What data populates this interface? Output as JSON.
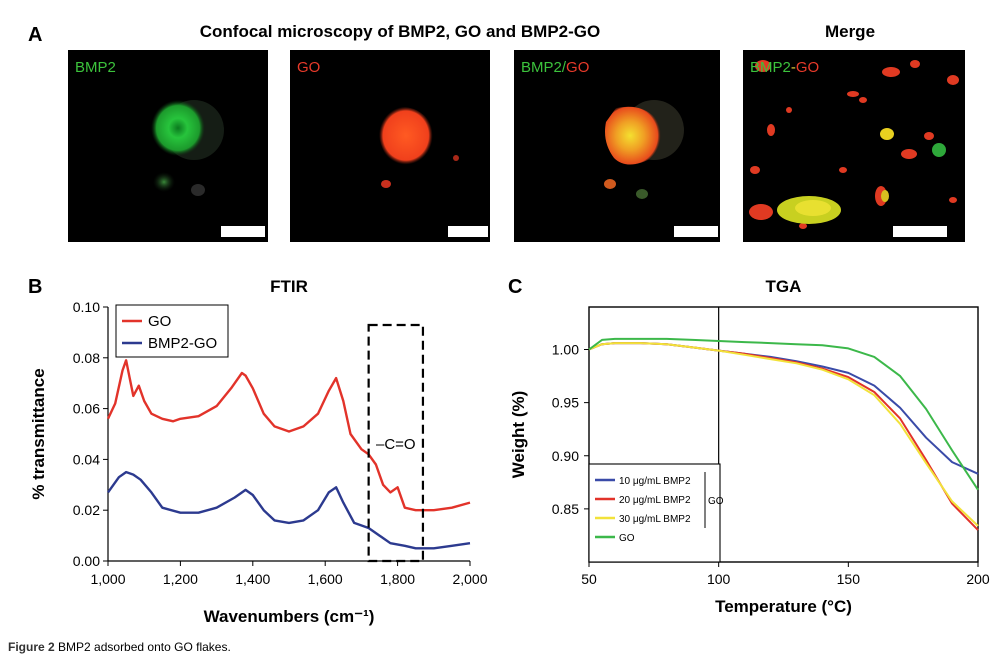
{
  "panel_a": {
    "letter": "A",
    "title": "Confocal microscopy of BMP2, GO and BMP2-GO",
    "merge_title": "Merge",
    "images": [
      {
        "label_parts": [
          {
            "text": "BMP2",
            "color": "#3cc23c"
          }
        ]
      },
      {
        "label_parts": [
          {
            "text": "GO",
            "color": "#e83a2a"
          }
        ]
      },
      {
        "label_parts": [
          {
            "text": "BMP2",
            "color": "#3cc23c"
          },
          {
            "text": "/",
            "color": "#3cc23c"
          },
          {
            "text": "GO",
            "color": "#e83a2a"
          }
        ]
      },
      {
        "label_parts": [
          {
            "text": "BMP2",
            "color": "#3cc23c"
          },
          {
            "text": "-",
            "color": "#e8d23a"
          },
          {
            "text": "GO",
            "color": "#e83a2a"
          }
        ]
      }
    ]
  },
  "panel_b": {
    "letter": "B"
  },
  "panel_c": {
    "letter": "C"
  },
  "caption": {
    "bold": "Figure 2",
    "text": "BMP2 adsorbed onto GO flakes."
  },
  "chart_data": [
    {
      "type": "line",
      "title": "FTIR",
      "xlabel": "Wavenumbers (cm⁻¹)",
      "ylabel": "% transmittance",
      "xlim": [
        1000,
        2000
      ],
      "ylim": [
        0,
        0.1
      ],
      "xticks": [
        "1,000",
        "1,200",
        "1,400",
        "1,600",
        "1,800",
        "2,000"
      ],
      "yticks": [
        "0.00",
        "0.02",
        "0.04",
        "0.06",
        "0.08",
        "0.10"
      ],
      "legend_position": "top-left",
      "annotation": {
        "text": "–C=O",
        "x_range": [
          1720,
          1870
        ]
      },
      "series": [
        {
          "name": "GO",
          "color": "#e2332a",
          "x": [
            1000,
            1020,
            1040,
            1050,
            1060,
            1070,
            1085,
            1100,
            1120,
            1150,
            1180,
            1200,
            1250,
            1300,
            1340,
            1370,
            1380,
            1400,
            1430,
            1460,
            1500,
            1540,
            1580,
            1610,
            1630,
            1650,
            1670,
            1700,
            1720,
            1740,
            1760,
            1780,
            1800,
            1820,
            1850,
            1900,
            1950,
            2000
          ],
          "y": [
            0.056,
            0.062,
            0.075,
            0.079,
            0.072,
            0.065,
            0.069,
            0.063,
            0.058,
            0.056,
            0.055,
            0.056,
            0.057,
            0.061,
            0.068,
            0.074,
            0.073,
            0.068,
            0.058,
            0.053,
            0.051,
            0.053,
            0.058,
            0.067,
            0.072,
            0.063,
            0.05,
            0.044,
            0.042,
            0.038,
            0.03,
            0.027,
            0.029,
            0.021,
            0.02,
            0.02,
            0.021,
            0.023
          ]
        },
        {
          "name": "BMP2-GO",
          "color": "#2c3a8f",
          "x": [
            1000,
            1030,
            1050,
            1070,
            1090,
            1120,
            1150,
            1200,
            1250,
            1300,
            1350,
            1380,
            1400,
            1430,
            1460,
            1500,
            1540,
            1580,
            1610,
            1630,
            1650,
            1680,
            1720,
            1750,
            1780,
            1820,
            1850,
            1900,
            1950,
            2000
          ],
          "y": [
            0.027,
            0.033,
            0.035,
            0.034,
            0.032,
            0.027,
            0.021,
            0.019,
            0.019,
            0.021,
            0.025,
            0.028,
            0.026,
            0.02,
            0.016,
            0.015,
            0.016,
            0.02,
            0.027,
            0.029,
            0.023,
            0.015,
            0.013,
            0.01,
            0.007,
            0.006,
            0.005,
            0.005,
            0.006,
            0.007
          ]
        }
      ]
    },
    {
      "type": "line",
      "title": "TGA",
      "xlabel": "Temperature (°C)",
      "ylabel": "Weight (%)",
      "xlim": [
        50,
        200
      ],
      "ylim": [
        0.8,
        1.04
      ],
      "xticks": [
        "50",
        "100",
        "150",
        "200"
      ],
      "yticks": [
        "0.85",
        "0.90",
        "0.95",
        "1.00"
      ],
      "legend_position": "bottom-left",
      "legend_group_label": "GO",
      "series": [
        {
          "name": "10 μg/mL BMP2",
          "color": "#3a4ba8",
          "x": [
            50,
            55,
            60,
            70,
            80,
            90,
            100,
            110,
            120,
            130,
            140,
            150,
            160,
            170,
            180,
            190,
            200
          ],
          "y": [
            1.0,
            1.005,
            1.006,
            1.006,
            1.005,
            1.002,
            0.999,
            0.996,
            0.993,
            0.989,
            0.984,
            0.978,
            0.966,
            0.945,
            0.917,
            0.894,
            0.883
          ]
        },
        {
          "name": "20 μg/mL BMP2",
          "color": "#e2332a",
          "x": [
            50,
            55,
            60,
            70,
            80,
            90,
            100,
            110,
            120,
            130,
            140,
            150,
            160,
            170,
            180,
            190,
            200
          ],
          "y": [
            1.0,
            1.005,
            1.006,
            1.006,
            1.005,
            1.002,
            0.999,
            0.996,
            0.992,
            0.988,
            0.982,
            0.974,
            0.96,
            0.935,
            0.896,
            0.855,
            0.83
          ]
        },
        {
          "name": "30 μg/mL BMP2",
          "color": "#f2e23a",
          "x": [
            50,
            55,
            60,
            70,
            80,
            90,
            100,
            110,
            120,
            130,
            140,
            150,
            160,
            170,
            180,
            190,
            200
          ],
          "y": [
            1.0,
            1.005,
            1.006,
            1.006,
            1.005,
            1.002,
            0.999,
            0.995,
            0.991,
            0.987,
            0.981,
            0.972,
            0.957,
            0.93,
            0.893,
            0.857,
            0.834
          ]
        },
        {
          "name": "GO",
          "color": "#3cb84a",
          "x": [
            50,
            55,
            60,
            70,
            80,
            90,
            100,
            110,
            120,
            130,
            140,
            150,
            160,
            170,
            180,
            190,
            200
          ],
          "y": [
            1.0,
            1.009,
            1.01,
            1.01,
            1.01,
            1.009,
            1.008,
            1.007,
            1.006,
            1.005,
            1.004,
            1.001,
            0.993,
            0.975,
            0.944,
            0.905,
            0.868
          ]
        }
      ]
    }
  ]
}
